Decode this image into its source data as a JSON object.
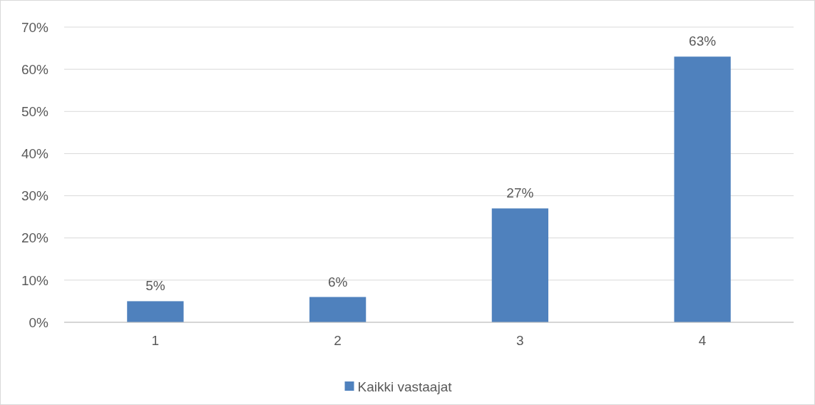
{
  "chart_data": {
    "type": "bar",
    "categories": [
      "1",
      "2",
      "3",
      "4"
    ],
    "series": [
      {
        "name": "Kaikki vastaajat",
        "color": "#4f81bd",
        "values": [
          5,
          6,
          27,
          63
        ]
      }
    ],
    "ylim": [
      0,
      70
    ],
    "yticks": [
      {
        "value": 0,
        "label": "0%"
      },
      {
        "value": 10,
        "label": "10%"
      },
      {
        "value": 20,
        "label": "20%"
      },
      {
        "value": 30,
        "label": "30%"
      },
      {
        "value": 40,
        "label": "40%"
      },
      {
        "value": 50,
        "label": "50%"
      },
      {
        "value": 60,
        "label": "60%"
      },
      {
        "value": 70,
        "label": "70%"
      }
    ],
    "value_labels": [
      "5%",
      "6%",
      "27%",
      "63%"
    ],
    "grid": "y",
    "legend": "bottom"
  }
}
